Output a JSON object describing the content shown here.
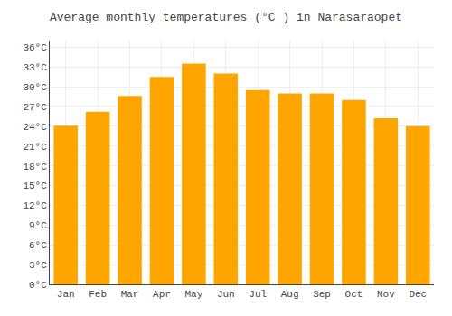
{
  "chart_data": {
    "type": "bar",
    "title": "Average monthly temperatures (°C ) in Narasaraopet",
    "categories": [
      "Jan",
      "Feb",
      "Mar",
      "Apr",
      "May",
      "Jun",
      "Jul",
      "Aug",
      "Sep",
      "Oct",
      "Nov",
      "Dec"
    ],
    "values": [
      24.1,
      26.2,
      28.6,
      31.5,
      33.5,
      32.0,
      29.5,
      29.0,
      29.0,
      28.0,
      25.2,
      24.0
    ],
    "color": "#FFA500",
    "ylim": [
      0,
      37
    ],
    "yticks": [
      {
        "value": 0,
        "label": "0°C"
      },
      {
        "value": 3,
        "label": "3°C"
      },
      {
        "value": 6,
        "label": "6°C"
      },
      {
        "value": 9,
        "label": "9°C"
      },
      {
        "value": 12,
        "label": "12°C"
      },
      {
        "value": 15,
        "label": "15°C"
      },
      {
        "value": 18,
        "label": "18°C"
      },
      {
        "value": 21,
        "label": "21°C"
      },
      {
        "value": 24,
        "label": "24°C"
      },
      {
        "value": 27,
        "label": "27°C"
      },
      {
        "value": 30,
        "label": "30°C"
      },
      {
        "value": 33,
        "label": "33°C"
      },
      {
        "value": 36,
        "label": "36°C"
      }
    ],
    "grid": true
  }
}
